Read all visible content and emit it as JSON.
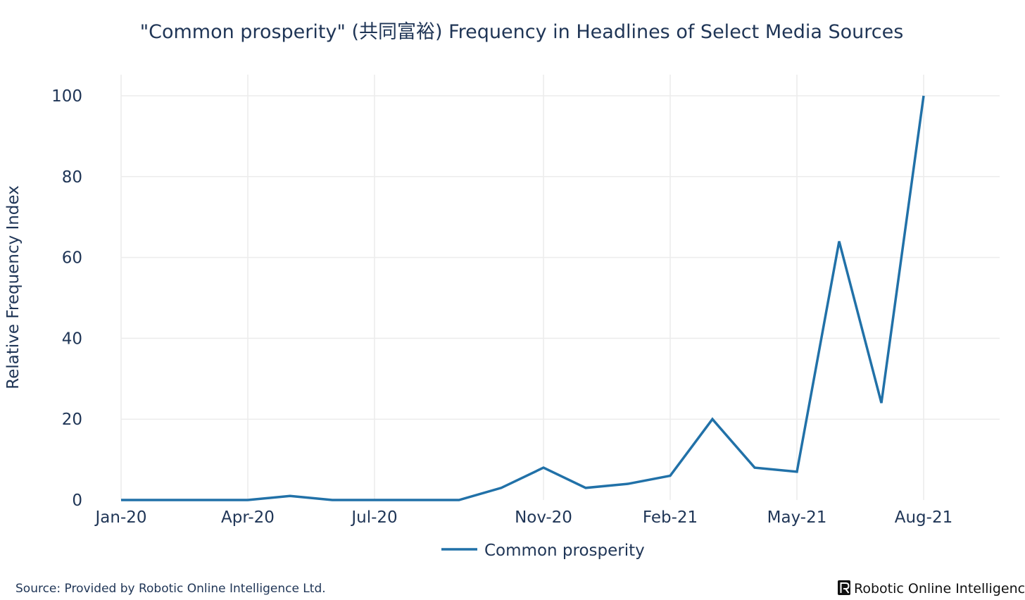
{
  "chart_data": {
    "type": "line",
    "title": "\"Common prosperity\" (共同富裕) Frequency in Headlines of Select Media Sources",
    "xlabel": "",
    "ylabel": "Relative Frequency Index",
    "x_ticks": [
      "Jan-20",
      "Apr-20",
      "Jul-20",
      "Nov-20",
      "Feb-21",
      "May-21",
      "Aug-21"
    ],
    "x": [
      "Jan-20",
      "Feb-20",
      "Mar-20",
      "Apr-20",
      "May-20",
      "Jun-20",
      "Jul-20",
      "Aug-20",
      "Sep-20",
      "Oct-20",
      "Nov-20",
      "Dec-20",
      "Jan-21",
      "Feb-21",
      "Mar-21",
      "Apr-21",
      "May-21",
      "Jun-21",
      "Jul-21",
      "Aug-21"
    ],
    "series": [
      {
        "name": "Common prosperity",
        "values": [
          0,
          0,
          0,
          0,
          1,
          0,
          0,
          0,
          0,
          3,
          8,
          3,
          4,
          6,
          20,
          8,
          7,
          64,
          24,
          100
        ],
        "color": "#2171a8"
      }
    ],
    "y_ticks": [
      0,
      20,
      40,
      60,
      80,
      100
    ],
    "ylim": [
      0,
      105
    ],
    "grid": true,
    "legend_position": "bottom-center"
  },
  "footer": {
    "source": "Source: Provided by Robotic Online Intelligence Ltd.",
    "brand": "Robotic Online Intelligence",
    "brand_logo_icon": "r-logo-icon"
  }
}
